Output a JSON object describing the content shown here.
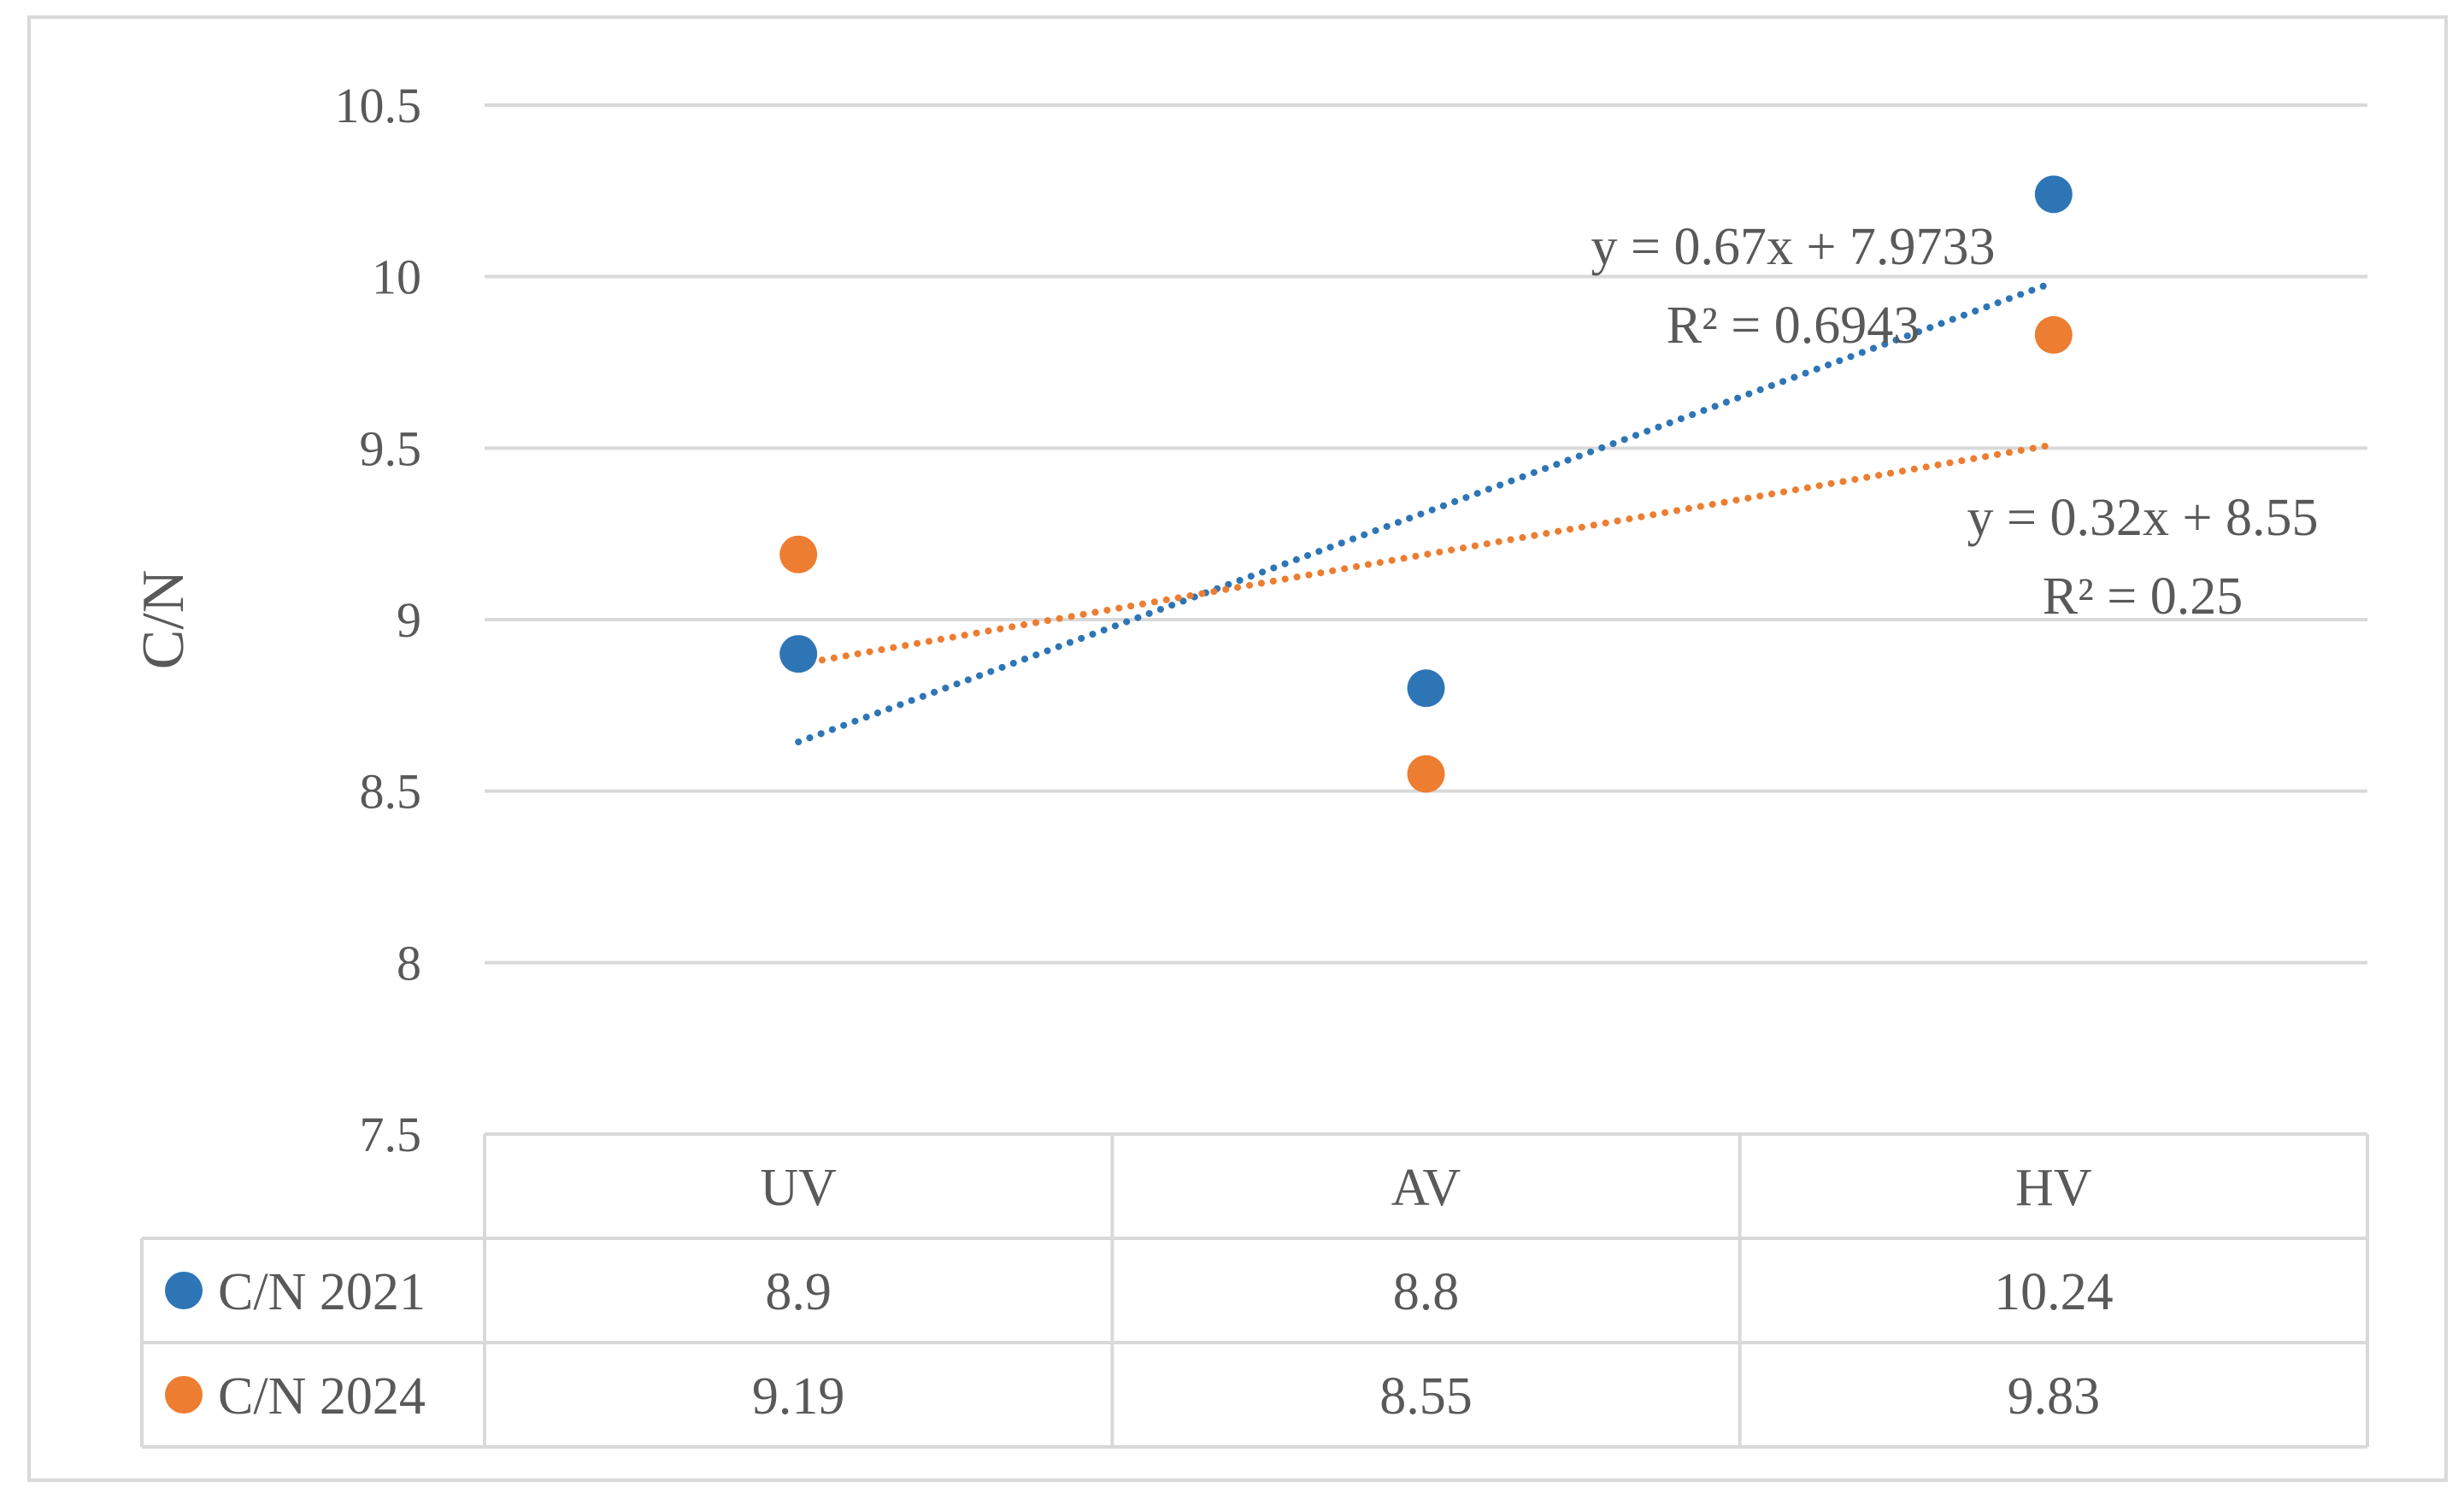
{
  "chart_data": {
    "type": "scatter",
    "ylabel": "C/N",
    "ylim": [
      7.5,
      10.5
    ],
    "yticks": [
      "7.5",
      "8",
      "8.5",
      "9",
      "9.5",
      "10",
      "10.5"
    ],
    "grid": true,
    "categories": [
      "UV",
      "AV",
      "HV"
    ],
    "series": [
      {
        "name": "C/N 2021",
        "color": "#2e75b6",
        "values": [
          8.9,
          8.8,
          10.24
        ],
        "labels": [
          "8.9",
          "8.8",
          "10.24"
        ],
        "trendline": {
          "slope": 0.67,
          "intercept": 7.9733,
          "equation": "y = 0.67x + 7.9733",
          "r2": "R² = 0.6943"
        }
      },
      {
        "name": "C/N 2024",
        "color": "#ed7d31",
        "values": [
          9.19,
          8.55,
          9.83
        ],
        "labels": [
          "9.19",
          "8.55",
          "9.83"
        ],
        "trendline": {
          "slope": 0.32,
          "intercept": 8.55,
          "equation": "y = 0.32x + 8.55",
          "r2": "R² = 0.25"
        }
      }
    ],
    "data_table": true
  }
}
